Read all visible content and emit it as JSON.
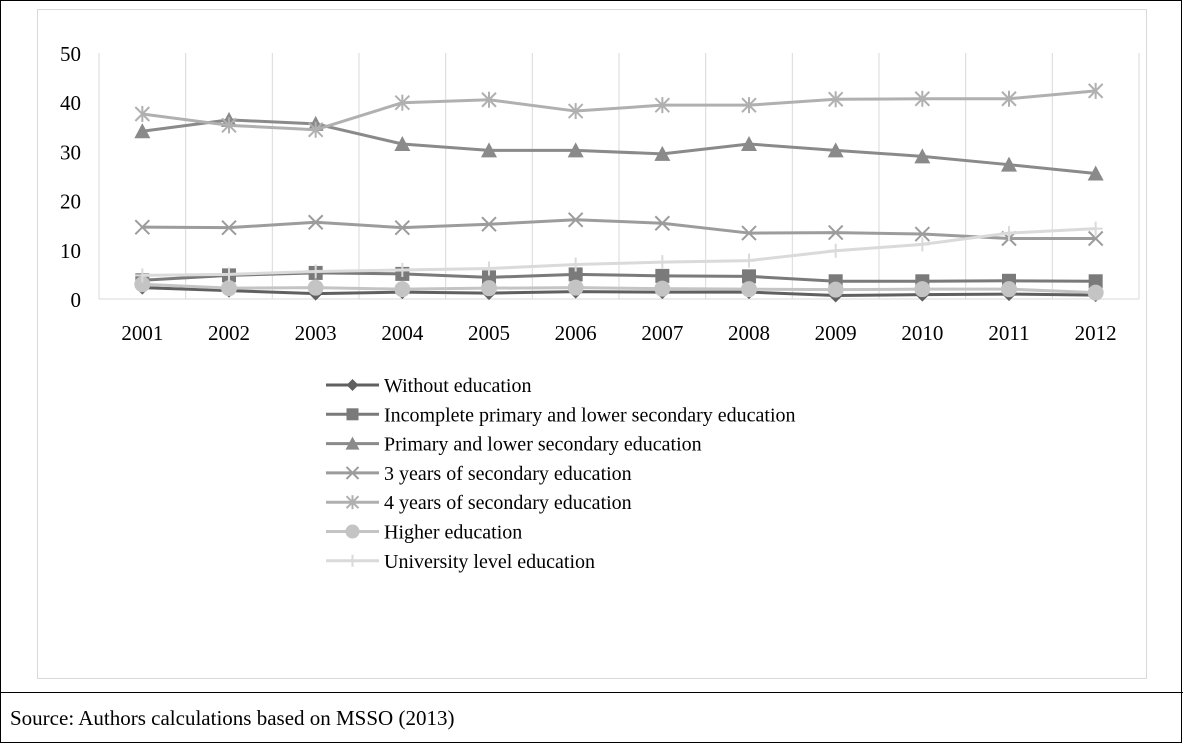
{
  "source_note": "Source: Authors calculations based on MSSO (2013)",
  "colors": {
    "without": "#606060",
    "incomplete": "#7a7a7a",
    "primary": "#8a8a8a",
    "three_years": "#9c9c9c",
    "four_years": "#b0b0b0",
    "higher": "#c4c4c4",
    "university": "#dadada",
    "grid": "#d9d9d9",
    "text": "#000000"
  },
  "chart_data": {
    "type": "line",
    "title": "",
    "xlabel": "",
    "ylabel": "",
    "ylim": [
      0,
      50
    ],
    "yticks": [
      0,
      10,
      20,
      30,
      40,
      50
    ],
    "grid": "vertical",
    "legend_position": "bottom",
    "categories": [
      "2001",
      "2002",
      "2003",
      "2004",
      "2005",
      "2006",
      "2007",
      "2008",
      "2009",
      "2010",
      "2011",
      "2012"
    ],
    "series": [
      {
        "name": "Without education",
        "marker": "diamond",
        "color": "#606060",
        "values": [
          2.3,
          1.7,
          1.1,
          1.4,
          1.2,
          1.5,
          1.4,
          1.4,
          0.7,
          0.9,
          1.0,
          0.8
        ]
      },
      {
        "name": "Incomplete primary and lower secondary education",
        "marker": "square",
        "color": "#7a7a7a",
        "values": [
          3.8,
          4.8,
          5.3,
          5.1,
          4.4,
          5.0,
          4.7,
          4.6,
          3.6,
          3.6,
          3.7,
          3.6
        ]
      },
      {
        "name": "Primary and lower secondary education",
        "marker": "triangle",
        "color": "#8a8a8a",
        "values": [
          34.1,
          36.4,
          35.6,
          31.5,
          30.2,
          30.2,
          29.5,
          31.5,
          30.2,
          29.0,
          27.3,
          25.5
        ]
      },
      {
        "name": "3 years of secondary education",
        "marker": "x",
        "color": "#9c9c9c",
        "values": [
          14.6,
          14.5,
          15.6,
          14.5,
          15.2,
          16.1,
          15.4,
          13.4,
          13.5,
          13.2,
          12.3,
          12.3
        ]
      },
      {
        "name": "4 years of secondary education",
        "marker": "star",
        "color": "#b0b0b0",
        "values": [
          37.6,
          35.3,
          34.4,
          39.9,
          40.5,
          38.2,
          39.4,
          39.4,
          40.6,
          40.7,
          40.7,
          42.3
        ]
      },
      {
        "name": "Higher education",
        "marker": "circle",
        "color": "#c4c4c4",
        "values": [
          3.0,
          2.2,
          2.3,
          2.0,
          2.2,
          2.3,
          2.1,
          2.0,
          1.9,
          2.0,
          2.0,
          1.3
        ]
      },
      {
        "name": "University level education",
        "marker": "plus",
        "color": "#dadada",
        "values": [
          4.8,
          5.0,
          5.6,
          5.9,
          6.2,
          7.0,
          7.5,
          7.8,
          9.8,
          11.1,
          13.4,
          14.3
        ]
      }
    ]
  }
}
